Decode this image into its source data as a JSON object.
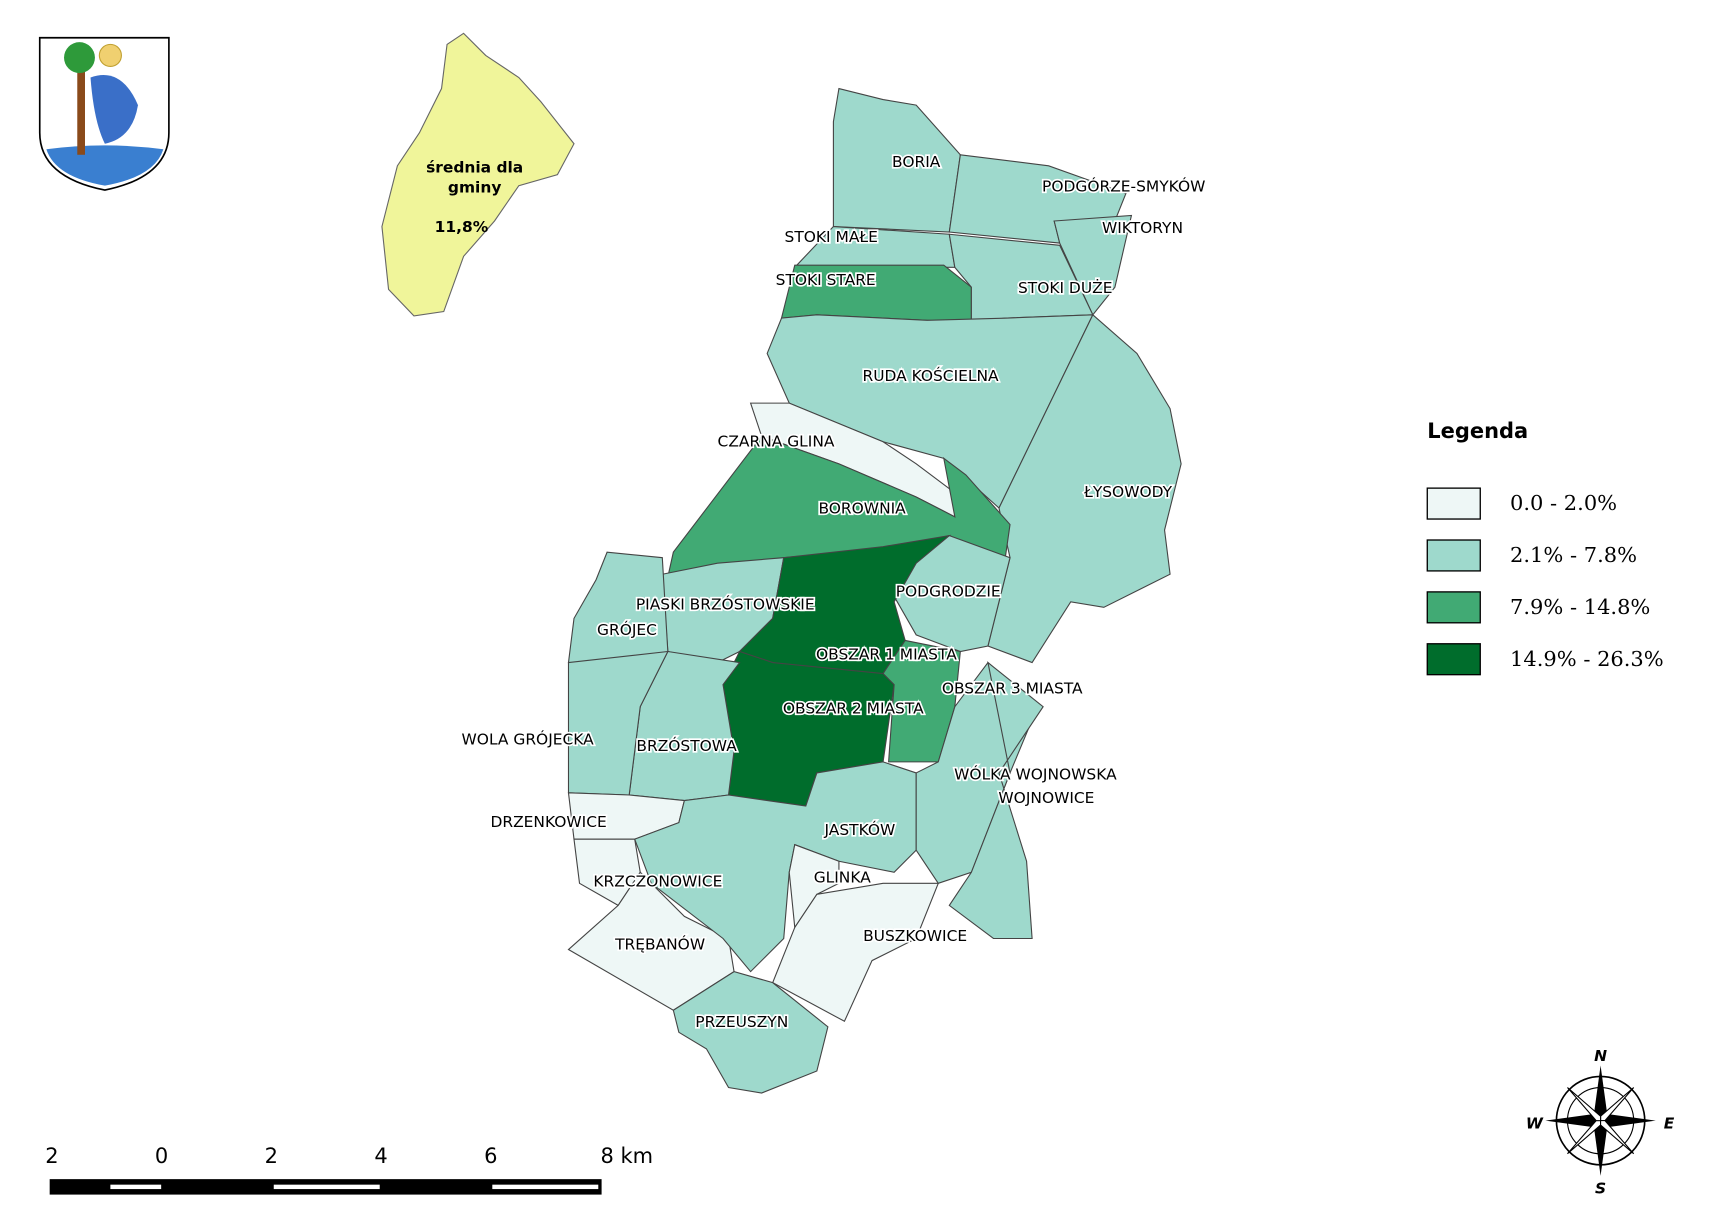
{
  "inset": {
    "lines": [
      "średnia dla",
      "gminy"
    ],
    "value": "11,8%",
    "color": "#f0f59a"
  },
  "legend": {
    "title": "Legenda",
    "items": [
      {
        "label": "0.0 - 2.0%",
        "color": "#eef7f6"
      },
      {
        "label": "2.1% - 7.8%",
        "color": "#9ed9cc"
      },
      {
        "label": "7.9% - 14.8%",
        "color": "#41aa74"
      },
      {
        "label": "14.9% - 26.3%",
        "color": "#006d2c"
      }
    ]
  },
  "regions": [
    {
      "name": "BORIA",
      "class": 1
    },
    {
      "name": "PODGÓRZE-SMYKÓW",
      "class": 1
    },
    {
      "name": "WIKTORYN",
      "class": 1
    },
    {
      "name": "STOKI MAŁE",
      "class": 1
    },
    {
      "name": "STOKI STARE",
      "class": 2
    },
    {
      "name": "STOKI DUŻE",
      "class": 1
    },
    {
      "name": "RUDA KOŚCIELNA",
      "class": 1
    },
    {
      "name": "ŁYSOWODY",
      "class": 1
    },
    {
      "name": "CZARNA GLINA",
      "class": 0
    },
    {
      "name": "BOROWNIA",
      "class": 2
    },
    {
      "name": "PODGRODZIE",
      "class": 1
    },
    {
      "name": "PIASKI BRZÓSTOWSKIE",
      "class": 1
    },
    {
      "name": "GRÓJEC",
      "class": 1
    },
    {
      "name": "OBSZAR 1 MIASTA",
      "class": 3
    },
    {
      "name": "OBSZAR 2  MIASTA",
      "class": 3
    },
    {
      "name": "OBSZAR 3 MIASTA",
      "class": 2
    },
    {
      "name": "BRZÓSTOWA",
      "class": 1
    },
    {
      "name": "WOLA GRÓJECKA",
      "class": 1
    },
    {
      "name": "DRZENKOWICE",
      "class": 0
    },
    {
      "name": "KRZCZONOWICE",
      "class": 0
    },
    {
      "name": "TRĘBANÓW",
      "class": 0
    },
    {
      "name": "JASTKÓW",
      "class": 1
    },
    {
      "name": "GLINKA",
      "class": 0
    },
    {
      "name": "BUSZKOWICE",
      "class": 0
    },
    {
      "name": "PRZEUSZYN",
      "class": 1
    },
    {
      "name": "WÓLKA WOJNOWSKA",
      "class": 1
    },
    {
      "name": "WOJNOWICE",
      "class": 1
    }
  ],
  "scale_bar": {
    "labels": [
      "2",
      "0",
      "2",
      "4",
      "6",
      "8 km"
    ]
  },
  "compass": {
    "n": "N",
    "e": "E",
    "s": "S",
    "w": "W"
  }
}
